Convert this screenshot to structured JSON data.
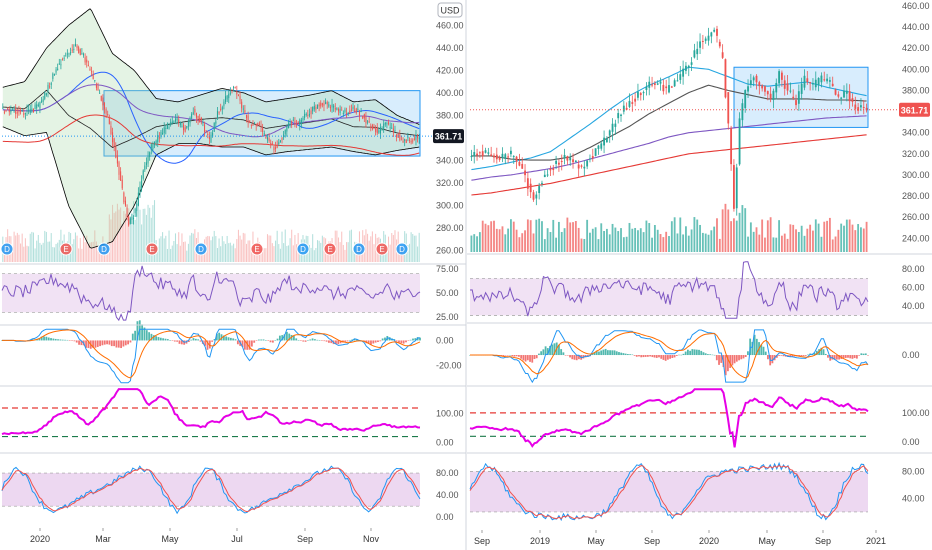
{
  "colors": {
    "up": "#26a69a",
    "down": "#ef5350",
    "rsi": "#7e57c2",
    "cci": "#e600e6",
    "stoch_k": "#2196f3",
    "stoch_d": "#ef5350",
    "macd": "#2196f3",
    "signal": "#ff6d00",
    "sma50": "#2962ff",
    "sma100": "#222222",
    "sma200": "#e53935",
    "sma150": "#7e57c2",
    "box_fill": "#90caf9",
    "bb": "#000000",
    "badge": "#131722"
  },
  "currency": "USD",
  "event_markers": {
    "left": [
      "D",
      "E",
      "D",
      "E",
      "D",
      "E",
      "D",
      "E",
      "D",
      "E",
      "D"
    ]
  },
  "chart_data": [
    {
      "id": "left",
      "type": "candlestick",
      "title": "",
      "period": "2020 daily",
      "x_labels": [
        "2020",
        "Mar",
        "May",
        "Jul",
        "Sep",
        "Nov"
      ],
      "last_price": "361.71",
      "price_axis": [
        {
          "label": "460.00",
          "value": 460
        },
        {
          "label": "440.00",
          "value": 440
        },
        {
          "label": "420.00",
          "value": 420
        },
        {
          "label": "400.00",
          "value": 400
        },
        {
          "label": "380.00",
          "value": 380
        },
        {
          "label": "360.00",
          "value": 360
        },
        {
          "label": "340.00",
          "value": 340
        },
        {
          "label": "320.00",
          "value": 320
        },
        {
          "label": "300.00",
          "value": 300
        },
        {
          "label": "280.00",
          "value": 280
        },
        {
          "label": "260.00",
          "value": 260
        }
      ],
      "price_range": [
        250,
        470
      ],
      "anchors": [
        [
          0,
          385
        ],
        [
          15,
          383
        ],
        [
          22,
          388
        ],
        [
          28,
          405
        ],
        [
          33,
          422
        ],
        [
          38,
          432
        ],
        [
          45,
          441
        ],
        [
          50,
          432
        ],
        [
          55,
          416
        ],
        [
          60,
          398
        ],
        [
          65,
          378
        ],
        [
          70,
          345
        ],
        [
          75,
          305
        ],
        [
          78,
          283
        ],
        [
          82,
          295
        ],
        [
          87,
          330
        ],
        [
          92,
          352
        ],
        [
          97,
          362
        ],
        [
          103,
          372
        ],
        [
          108,
          375
        ],
        [
          113,
          368
        ],
        [
          118,
          384
        ],
        [
          123,
          375
        ],
        [
          128,
          358
        ],
        [
          133,
          382
        ],
        [
          138,
          395
        ],
        [
          143,
          406
        ],
        [
          148,
          388
        ],
        [
          153,
          373
        ],
        [
          158,
          372
        ],
        [
          163,
          360
        ],
        [
          168,
          350
        ],
        [
          173,
          360
        ],
        [
          178,
          375
        ],
        [
          183,
          372
        ],
        [
          188,
          381
        ],
        [
          193,
          386
        ],
        [
          198,
          392
        ],
        [
          203,
          388
        ],
        [
          208,
          384
        ],
        [
          213,
          382
        ],
        [
          218,
          386
        ],
        [
          223,
          380
        ],
        [
          228,
          370
        ],
        [
          233,
          366
        ],
        [
          238,
          373
        ],
        [
          243,
          365
        ],
        [
          248,
          358
        ],
        [
          253,
          359
        ],
        [
          258,
          362
        ]
      ],
      "bollinger": {
        "upper": [
          405,
          410,
          440,
          460,
          475,
          435,
          420,
          395,
          392,
          398,
          404,
          400,
          392,
          395,
          398,
          402,
          392,
          394,
          380,
          372
        ],
        "lower": [
          370,
          362,
          365,
          300,
          262,
          268,
          300,
          345,
          355,
          355,
          352,
          352,
          345,
          348,
          350,
          352,
          348,
          345,
          349,
          352
        ]
      },
      "box": {
        "top": 402,
        "bottom": 344
      },
      "volume_max": 1,
      "sub_panels": {
        "rsi": {
          "axis": [
            {
              "label": "75.00",
              "value": 75
            },
            {
              "label": "50.00",
              "value": 50
            },
            {
              "label": "25.00",
              "value": 25
            }
          ],
          "range": [
            20,
            80
          ],
          "band": [
            30,
            70
          ]
        },
        "macd": {
          "axis": [
            {
              "label": "0.00",
              "value": 0
            },
            {
              "label": "-20.00",
              "value": -20
            }
          ],
          "range": [
            -35,
            10
          ]
        },
        "cci": {
          "axis": [
            {
              "label": "100.00",
              "value": 100
            },
            {
              "label": "0.00",
              "value": 0
            }
          ],
          "range": [
            -20,
            190
          ],
          "lines": [
            120,
            20
          ]
        },
        "stoch": {
          "axis": [
            {
              "label": "80.00",
              "value": 80
            },
            {
              "label": "40.00",
              "value": 40
            },
            {
              "label": "0.00",
              "value": 0
            }
          ],
          "range": [
            -5,
            100
          ],
          "band": [
            20,
            80
          ]
        }
      }
    },
    {
      "id": "right",
      "type": "candlestick",
      "title": "",
      "period": "2018-2020 weekly",
      "x_labels": [
        "Sep",
        "2019",
        "May",
        "Sep",
        "2020",
        "May",
        "Sep",
        "2021"
      ],
      "last_price": "361.71",
      "price_axis": [
        {
          "label": "460.00",
          "value": 460
        },
        {
          "label": "440.00",
          "value": 440
        },
        {
          "label": "420.00",
          "value": 420
        },
        {
          "label": "400.00",
          "value": 400
        },
        {
          "label": "380.00",
          "value": 380
        },
        {
          "label": "360.00",
          "value": 360
        },
        {
          "label": "340.00",
          "value": 340
        },
        {
          "label": "320.00",
          "value": 320
        },
        {
          "label": "300.00",
          "value": 300
        },
        {
          "label": "280.00",
          "value": 280
        },
        {
          "label": "260.00",
          "value": 260
        },
        {
          "label": "240.00",
          "value": 240
        }
      ],
      "price_range": [
        227,
        460
      ],
      "anchors": [
        [
          0,
          319
        ],
        [
          3,
          322
        ],
        [
          6,
          321
        ],
        [
          9,
          318
        ],
        [
          11,
          317
        ],
        [
          14,
          319
        ],
        [
          17,
          310
        ],
        [
          19,
          296
        ],
        [
          22,
          277
        ],
        [
          24,
          292
        ],
        [
          27,
          304
        ],
        [
          30,
          311
        ],
        [
          33,
          317
        ],
        [
          36,
          311
        ],
        [
          39,
          307
        ],
        [
          42,
          316
        ],
        [
          45,
          326
        ],
        [
          48,
          336
        ],
        [
          51,
          352
        ],
        [
          54,
          362
        ],
        [
          57,
          371
        ],
        [
          60,
          378
        ],
        [
          63,
          386
        ],
        [
          66,
          388
        ],
        [
          69,
          380
        ],
        [
          72,
          388
        ],
        [
          75,
          398
        ],
        [
          78,
          410
        ],
        [
          81,
          425
        ],
        [
          84,
          431
        ],
        [
          86,
          438
        ],
        [
          89,
          408
        ],
        [
          91,
          345
        ],
        [
          93,
          270
        ],
        [
          95,
          350
        ],
        [
          97,
          380
        ],
        [
          100,
          392
        ],
        [
          103,
          382
        ],
        [
          106,
          372
        ],
        [
          109,
          395
        ],
        [
          112,
          380
        ],
        [
          115,
          368
        ],
        [
          118,
          390
        ],
        [
          121,
          384
        ],
        [
          124,
          392
        ],
        [
          127,
          386
        ],
        [
          130,
          373
        ],
        [
          133,
          378
        ],
        [
          136,
          363
        ],
        [
          138,
          366
        ],
        [
          140,
          360
        ]
      ],
      "ma1": [
        305,
        308,
        312,
        316,
        322,
        335,
        348,
        362,
        375,
        385,
        393,
        402,
        400,
        393,
        386,
        384,
        386,
        388,
        383,
        379,
        375
      ],
      "ma2": [
        318,
        318,
        315,
        314,
        314,
        317,
        326,
        336,
        346,
        358,
        368,
        378,
        385,
        380,
        376,
        372,
        372,
        372,
        371,
        371,
        370
      ],
      "ma3": [
        295,
        298,
        300,
        303,
        306,
        310,
        315,
        320,
        325,
        330,
        336,
        340,
        342,
        344,
        346,
        348,
        350,
        352,
        354,
        355,
        356
      ],
      "ma4": [
        281,
        283,
        286,
        289,
        292,
        296,
        300,
        304,
        308,
        312,
        316,
        320,
        322,
        324,
        326,
        328,
        330,
        332,
        334,
        336,
        338
      ],
      "box": {
        "top": 402,
        "bottom": 345
      },
      "sub_panels": {
        "rsi": {
          "axis": [
            {
              "label": "80.00",
              "value": 80
            },
            {
              "label": "60.00",
              "value": 60
            },
            {
              "label": "40.00",
              "value": 40
            }
          ],
          "range": [
            25,
            90
          ],
          "band": [
            30,
            70
          ]
        },
        "macd": {
          "axis": [
            {
              "label": "0.00",
              "value": 0
            }
          ],
          "range": [
            -15,
            14
          ]
        },
        "cci": {
          "axis": [
            {
              "label": "100.00",
              "value": 100
            },
            {
              "label": "0.00",
              "value": 0
            }
          ],
          "range": [
            -20,
            185
          ],
          "lines": [
            100,
            20
          ]
        },
        "stoch": {
          "axis": [
            {
              "label": "80.00",
              "value": 80
            },
            {
              "label": "40.00",
              "value": 40
            }
          ],
          "range": [
            8,
            100
          ],
          "band": [
            20,
            80
          ]
        }
      }
    }
  ]
}
